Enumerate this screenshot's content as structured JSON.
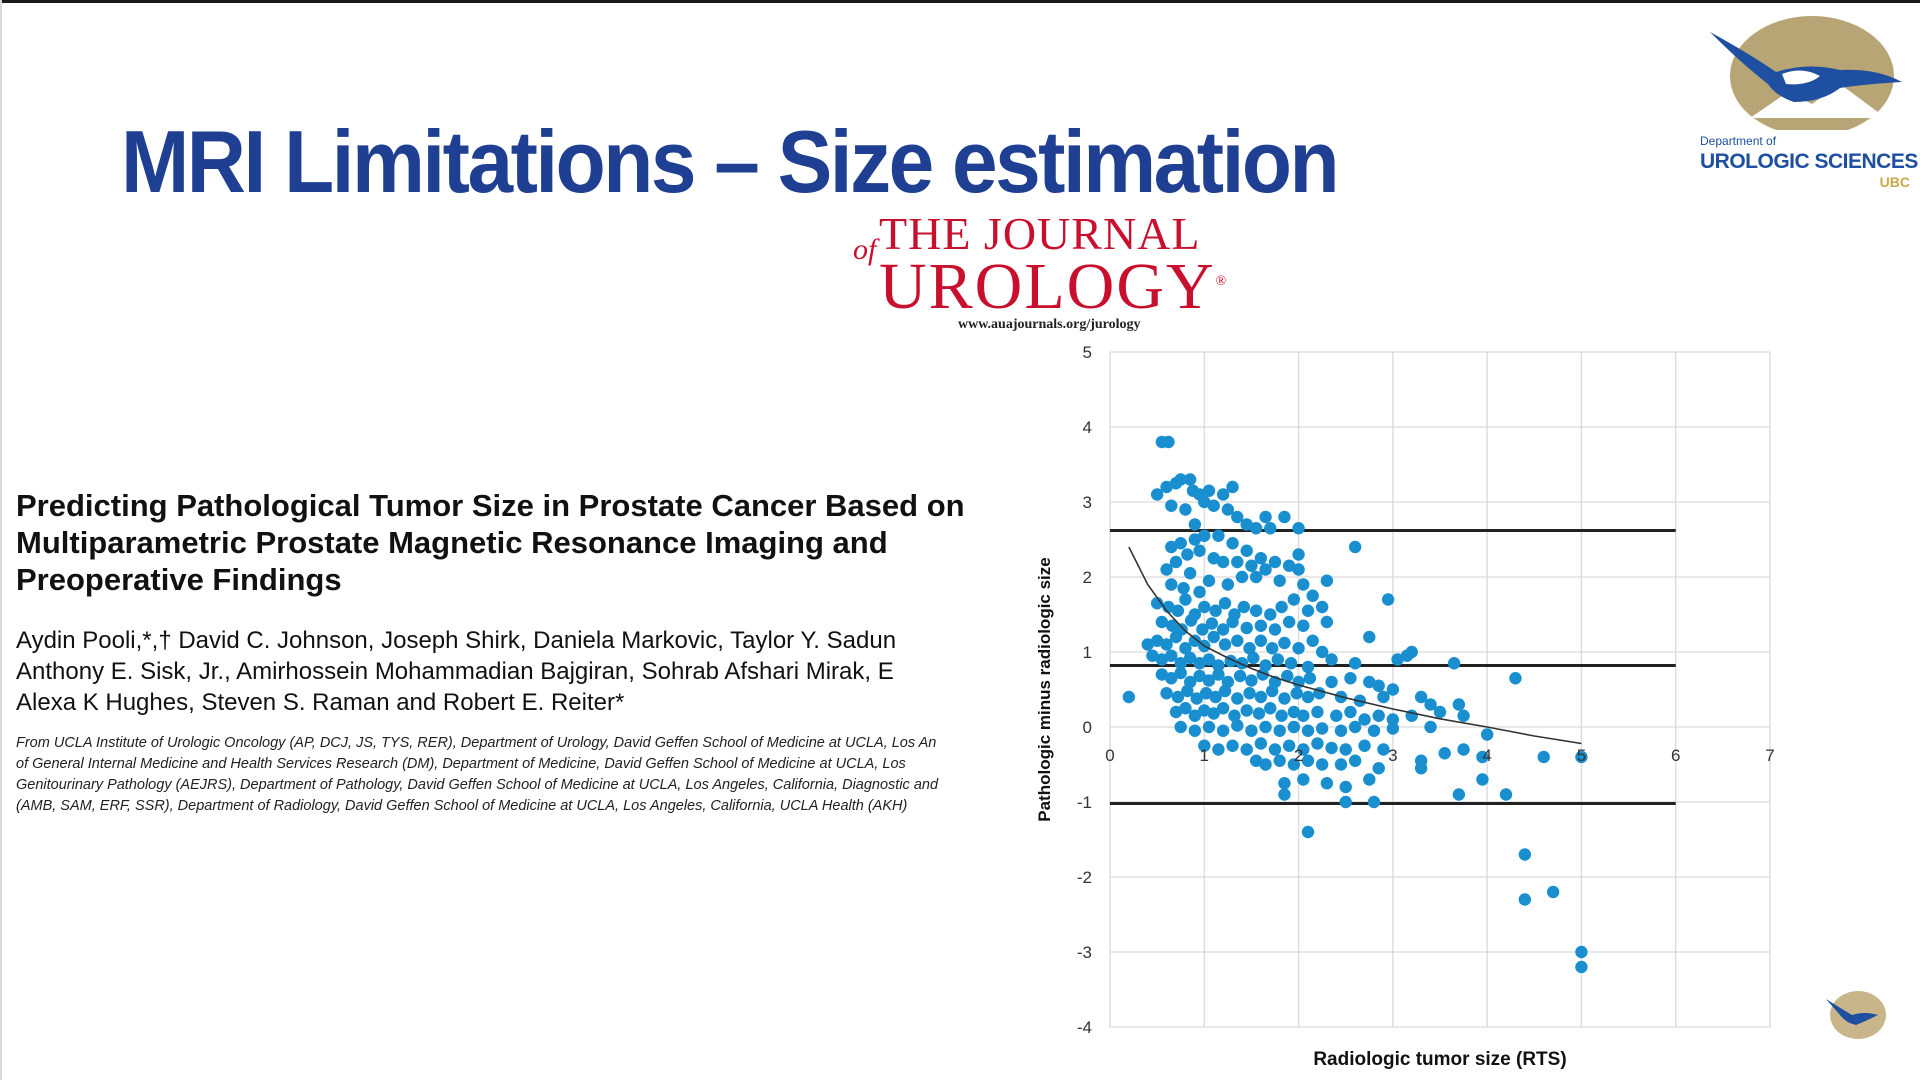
{
  "slide": {
    "title": "MRI Limitations – Size estimation"
  },
  "journal": {
    "of": "of",
    "line1": "THE JOURNAL",
    "line2": "UROLOGY",
    "registered": "®",
    "url": "www.auajournals.org/jurology"
  },
  "logo": {
    "dept": "Department of",
    "name": "UROLOGIC SCIENCES",
    "ubc": "UBC"
  },
  "paper": {
    "title_lines": [
      "Predicting Pathological Tumor Size in Prostate Cancer Based on",
      "Multiparametric Prostate Magnetic Resonance Imaging and",
      "Preoperative Findings"
    ],
    "author_lines": [
      "Aydin Pooli,*,† David C. Johnson, Joseph Shirk, Daniela Markovic, Taylor Y. Sadun",
      "Anthony E. Sisk, Jr., Amirhossein Mohammadian Bajgiran, Sohrab Afshari Mirak, E",
      "Alexa K Hughes, Steven S. Raman and Robert E. Reiter*"
    ],
    "affiliation_lines": [
      "From UCLA Institute of Urologic Oncology (AP, DCJ, JS, TYS, RER), Department of Urology, David Geffen School of Medicine at UCLA, Los An",
      "of General Internal Medicine and Health Services Research (DM), Department of Medicine, David Geffen School of Medicine at UCLA, Los",
      "Genitourinary Pathology (AEJRS), Department of Pathology, David Geffen School of Medicine at UCLA, Los Angeles, California, Diagnostic and",
      "(AMB, SAM, ERF, SSR), Department of Radiology, David Geffen School of Medicine at UCLA, Los Angeles, California, UCLA Health (AKH)"
    ]
  },
  "chart_data": {
    "type": "scatter",
    "title": "",
    "xlabel": "Radiologic tumor size (RTS)",
    "ylabel": "Pathologic  minus radiologic size",
    "xlim": [
      0,
      7
    ],
    "ylim": [
      -4,
      5
    ],
    "x_ticks": [
      0,
      1,
      2,
      3,
      4,
      5,
      6,
      7
    ],
    "y_ticks": [
      -4,
      -3,
      -2,
      -1,
      0,
      1,
      2,
      3,
      4,
      5
    ],
    "grid": true,
    "point_color": "#1a8fd0",
    "series": [
      {
        "name": "Patients",
        "points": [
          [
            0.55,
            3.8
          ],
          [
            0.62,
            3.8
          ],
          [
            0.5,
            3.1
          ],
          [
            0.6,
            3.2
          ],
          [
            0.7,
            3.25
          ],
          [
            0.75,
            3.3
          ],
          [
            0.85,
            3.3
          ],
          [
            0.88,
            3.15
          ],
          [
            0.95,
            3.1
          ],
          [
            1.05,
            3.15
          ],
          [
            1.2,
            3.1
          ],
          [
            1.3,
            3.2
          ],
          [
            1.0,
            3.0
          ],
          [
            1.1,
            2.95
          ],
          [
            1.25,
            2.9
          ],
          [
            1.35,
            2.8
          ],
          [
            1.45,
            2.7
          ],
          [
            1.55,
            2.65
          ],
          [
            1.7,
            2.65
          ],
          [
            1.65,
            2.8
          ],
          [
            1.85,
            2.8
          ],
          [
            2.0,
            2.65
          ],
          [
            0.65,
            2.95
          ],
          [
            0.8,
            2.9
          ],
          [
            0.9,
            2.7
          ],
          [
            1.15,
            2.55
          ],
          [
            1.3,
            2.45
          ],
          [
            1.45,
            2.35
          ],
          [
            1.6,
            2.25
          ],
          [
            2.6,
            2.4
          ],
          [
            0.65,
            2.4
          ],
          [
            0.75,
            2.45
          ],
          [
            0.9,
            2.5
          ],
          [
            1.0,
            2.55
          ],
          [
            0.7,
            2.2
          ],
          [
            0.82,
            2.3
          ],
          [
            0.95,
            2.35
          ],
          [
            1.1,
            2.25
          ],
          [
            1.2,
            2.2
          ],
          [
            1.35,
            2.2
          ],
          [
            1.5,
            2.15
          ],
          [
            1.65,
            2.1
          ],
          [
            1.75,
            2.2
          ],
          [
            1.9,
            2.15
          ],
          [
            2.0,
            2.3
          ],
          [
            2.0,
            2.1
          ],
          [
            1.55,
            2.0
          ],
          [
            1.4,
            2.0
          ],
          [
            0.6,
            2.1
          ],
          [
            0.85,
            2.05
          ],
          [
            0.65,
            1.9
          ],
          [
            0.78,
            1.85
          ],
          [
            0.95,
            1.8
          ],
          [
            1.05,
            1.95
          ],
          [
            1.25,
            1.9
          ],
          [
            1.8,
            1.95
          ],
          [
            2.05,
            1.9
          ],
          [
            2.3,
            1.95
          ],
          [
            2.15,
            1.75
          ],
          [
            2.95,
            1.7
          ],
          [
            0.5,
            1.65
          ],
          [
            0.62,
            1.6
          ],
          [
            0.72,
            1.55
          ],
          [
            0.8,
            1.7
          ],
          [
            0.9,
            1.5
          ],
          [
            1.0,
            1.6
          ],
          [
            1.12,
            1.55
          ],
          [
            1.22,
            1.65
          ],
          [
            1.32,
            1.5
          ],
          [
            1.42,
            1.6
          ],
          [
            1.55,
            1.55
          ],
          [
            1.7,
            1.5
          ],
          [
            1.82,
            1.6
          ],
          [
            1.95,
            1.7
          ],
          [
            2.1,
            1.55
          ],
          [
            2.25,
            1.6
          ],
          [
            2.3,
            1.4
          ],
          [
            0.55,
            1.4
          ],
          [
            0.66,
            1.35
          ],
          [
            0.76,
            1.3
          ],
          [
            0.86,
            1.42
          ],
          [
            0.98,
            1.3
          ],
          [
            1.08,
            1.38
          ],
          [
            1.2,
            1.3
          ],
          [
            1.3,
            1.4
          ],
          [
            1.45,
            1.32
          ],
          [
            1.6,
            1.35
          ],
          [
            1.75,
            1.3
          ],
          [
            1.9,
            1.4
          ],
          [
            2.05,
            1.35
          ],
          [
            0.5,
            1.15
          ],
          [
            0.6,
            1.1
          ],
          [
            0.7,
            1.2
          ],
          [
            0.8,
            1.05
          ],
          [
            0.9,
            1.15
          ],
          [
            1.0,
            1.08
          ],
          [
            1.1,
            1.2
          ],
          [
            1.22,
            1.1
          ],
          [
            1.35,
            1.15
          ],
          [
            1.48,
            1.05
          ],
          [
            1.6,
            1.15
          ],
          [
            1.72,
            1.05
          ],
          [
            1.85,
            1.12
          ],
          [
            2.0,
            1.05
          ],
          [
            2.15,
            1.15
          ],
          [
            2.25,
            1.0
          ],
          [
            2.75,
            1.2
          ],
          [
            3.15,
            0.95
          ],
          [
            3.2,
            1.0
          ],
          [
            0.4,
            1.1
          ],
          [
            0.45,
            0.95
          ],
          [
            0.55,
            0.9
          ],
          [
            0.65,
            0.95
          ],
          [
            0.75,
            0.85
          ],
          [
            0.85,
            0.92
          ],
          [
            0.95,
            0.85
          ],
          [
            1.05,
            0.9
          ],
          [
            1.15,
            0.82
          ],
          [
            1.28,
            0.88
          ],
          [
            1.4,
            0.85
          ],
          [
            1.52,
            0.92
          ],
          [
            1.65,
            0.82
          ],
          [
            1.78,
            0.9
          ],
          [
            1.92,
            0.85
          ],
          [
            2.1,
            0.8
          ],
          [
            2.35,
            0.9
          ],
          [
            2.6,
            0.85
          ],
          [
            3.05,
            0.9
          ],
          [
            3.65,
            0.85
          ],
          [
            4.3,
            0.65
          ],
          [
            0.55,
            0.7
          ],
          [
            0.65,
            0.65
          ],
          [
            0.75,
            0.72
          ],
          [
            0.85,
            0.6
          ],
          [
            0.95,
            0.68
          ],
          [
            1.05,
            0.62
          ],
          [
            1.15,
            0.7
          ],
          [
            1.25,
            0.6
          ],
          [
            1.38,
            0.68
          ],
          [
            1.5,
            0.62
          ],
          [
            1.62,
            0.7
          ],
          [
            1.75,
            0.6
          ],
          [
            1.88,
            0.68
          ],
          [
            2.0,
            0.6
          ],
          [
            2.12,
            0.65
          ],
          [
            2.35,
            0.6
          ],
          [
            2.55,
            0.65
          ],
          [
            2.75,
            0.6
          ],
          [
            2.85,
            0.55
          ],
          [
            3.0,
            0.5
          ],
          [
            0.6,
            0.45
          ],
          [
            0.72,
            0.4
          ],
          [
            0.82,
            0.48
          ],
          [
            0.92,
            0.38
          ],
          [
            1.02,
            0.45
          ],
          [
            1.12,
            0.4
          ],
          [
            1.22,
            0.48
          ],
          [
            1.35,
            0.38
          ],
          [
            1.48,
            0.45
          ],
          [
            1.6,
            0.4
          ],
          [
            1.72,
            0.48
          ],
          [
            1.85,
            0.38
          ],
          [
            1.98,
            0.45
          ],
          [
            2.1,
            0.4
          ],
          [
            2.22,
            0.45
          ],
          [
            2.45,
            0.4
          ],
          [
            2.65,
            0.35
          ],
          [
            2.9,
            0.4
          ],
          [
            3.3,
            0.4
          ],
          [
            3.4,
            0.3
          ],
          [
            3.7,
            0.3
          ],
          [
            0.2,
            0.4
          ],
          [
            0.7,
            0.2
          ],
          [
            0.8,
            0.25
          ],
          [
            0.9,
            0.15
          ],
          [
            1.0,
            0.22
          ],
          [
            1.1,
            0.18
          ],
          [
            1.2,
            0.25
          ],
          [
            1.32,
            0.15
          ],
          [
            1.45,
            0.22
          ],
          [
            1.58,
            0.18
          ],
          [
            1.7,
            0.25
          ],
          [
            1.82,
            0.15
          ],
          [
            1.95,
            0.2
          ],
          [
            2.05,
            0.15
          ],
          [
            2.2,
            0.2
          ],
          [
            2.4,
            0.15
          ],
          [
            2.55,
            0.2
          ],
          [
            2.7,
            0.1
          ],
          [
            2.85,
            0.15
          ],
          [
            3.0,
            0.1
          ],
          [
            3.2,
            0.15
          ],
          [
            3.5,
            0.2
          ],
          [
            3.75,
            0.15
          ],
          [
            0.75,
            0.0
          ],
          [
            0.9,
            -0.05
          ],
          [
            1.05,
            0.0
          ],
          [
            1.2,
            -0.05
          ],
          [
            1.35,
            0.02
          ],
          [
            1.5,
            -0.05
          ],
          [
            1.65,
            0.0
          ],
          [
            1.8,
            -0.05
          ],
          [
            1.95,
            0.0
          ],
          [
            2.1,
            -0.05
          ],
          [
            2.25,
            -0.02
          ],
          [
            2.45,
            -0.05
          ],
          [
            2.6,
            0.0
          ],
          [
            2.8,
            -0.05
          ],
          [
            3.0,
            -0.02
          ],
          [
            3.4,
            0.0
          ],
          [
            1.0,
            -0.25
          ],
          [
            1.15,
            -0.3
          ],
          [
            1.3,
            -0.25
          ],
          [
            1.45,
            -0.3
          ],
          [
            1.6,
            -0.22
          ],
          [
            1.75,
            -0.3
          ],
          [
            1.9,
            -0.25
          ],
          [
            2.05,
            -0.3
          ],
          [
            2.2,
            -0.22
          ],
          [
            2.35,
            -0.28
          ],
          [
            2.5,
            -0.3
          ],
          [
            2.7,
            -0.25
          ],
          [
            2.9,
            -0.3
          ],
          [
            3.3,
            -0.45
          ],
          [
            3.55,
            -0.35
          ],
          [
            3.75,
            -0.3
          ],
          [
            4.0,
            -0.1
          ],
          [
            1.55,
            -0.45
          ],
          [
            1.65,
            -0.5
          ],
          [
            1.8,
            -0.45
          ],
          [
            1.95,
            -0.5
          ],
          [
            2.1,
            -0.45
          ],
          [
            2.25,
            -0.5
          ],
          [
            2.45,
            -0.5
          ],
          [
            2.6,
            -0.45
          ],
          [
            2.85,
            -0.55
          ],
          [
            3.3,
            -0.55
          ],
          [
            3.95,
            -0.4
          ],
          [
            3.95,
            -0.7
          ],
          [
            4.6,
            -0.4
          ],
          [
            5.0,
            -0.4
          ],
          [
            1.85,
            -0.75
          ],
          [
            2.05,
            -0.7
          ],
          [
            2.3,
            -0.75
          ],
          [
            2.5,
            -0.8
          ],
          [
            2.75,
            -0.7
          ],
          [
            1.85,
            -0.9
          ],
          [
            2.5,
            -1.0
          ],
          [
            2.8,
            -1.0
          ],
          [
            3.7,
            -0.9
          ],
          [
            4.2,
            -0.9
          ],
          [
            2.1,
            -1.4
          ],
          [
            4.4,
            -1.7
          ],
          [
            4.4,
            -2.3
          ],
          [
            4.7,
            -2.2
          ],
          [
            5.0,
            -3.0
          ],
          [
            5.0,
            -3.2
          ]
        ]
      }
    ],
    "reference_lines_y": [
      2.62,
      0.82,
      -1.02
    ],
    "trend_curve": [
      [
        0.2,
        2.4
      ],
      [
        0.4,
        1.9
      ],
      [
        0.6,
        1.55
      ],
      [
        0.8,
        1.28
      ],
      [
        1.0,
        1.08
      ],
      [
        1.25,
        0.92
      ],
      [
        1.5,
        0.78
      ],
      [
        1.75,
        0.66
      ],
      [
        2.0,
        0.56
      ],
      [
        2.5,
        0.39
      ],
      [
        3.0,
        0.24
      ],
      [
        3.5,
        0.11
      ],
      [
        4.0,
        0.0
      ],
      [
        4.5,
        -0.12
      ],
      [
        5.0,
        -0.22
      ]
    ]
  }
}
